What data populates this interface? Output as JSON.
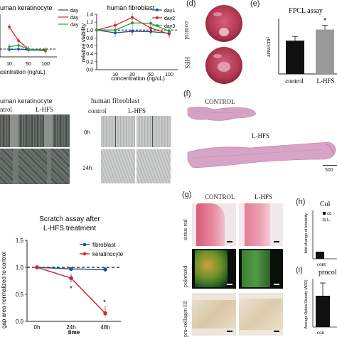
{
  "panel_letters": {
    "d": "(d)",
    "e": "(e)",
    "f": "(f)",
    "g": "(g)",
    "h": "(h)",
    "i": "(i)"
  },
  "top_left_chart": {
    "title": "uman keratinocyte",
    "xlabel": "concentration (ng/uL)"
  },
  "top_mid_chart": {
    "title": "human fibroblast",
    "ylabel": "relative viability",
    "xlabel": "concentration (ng/uL)"
  },
  "legend_days": [
    "day1",
    "day2",
    "day3"
  ],
  "day_colors": {
    "day1": "#1f4e9e",
    "day2": "#d6262b",
    "day3": "#2e9e44"
  },
  "scratch_headers": {
    "keratinocyte_title": "uman keratinocyte",
    "fibroblast_title": "human fibroblast",
    "control_partial": "ntrol",
    "control": "control",
    "lhfs": "L-HFS",
    "row_0h": "0h",
    "row_24h": "24h"
  },
  "panel_d": {
    "control": "control",
    "hfs": "HFS"
  },
  "panel_f": {
    "control": "CONTROL",
    "lhfs": "L-HFS",
    "scale": "500"
  },
  "panel_g": {
    "control": "CONTROL",
    "lhfs": "L-HFS",
    "rows": [
      "sirius red",
      "polorized",
      "pro-collagen III"
    ]
  },
  "panel_h": {
    "title": "Col",
    "ylabel": "fold change of intensity",
    "tick": "cont",
    "legend": [
      "co",
      "L-"
    ]
  },
  "panel_i": {
    "title": "procoll",
    "ylabel": "Average Optical Density (AOD)",
    "tick": "con"
  },
  "chart_data": [
    {
      "type": "line",
      "title": "uman keratinocyte",
      "xlabel": "concentration (ng/uL)",
      "x": [
        10,
        20,
        50,
        100
      ],
      "series": [
        {
          "name": "day1",
          "color": "#1f4e9e",
          "values": [
            0.99,
            1.0,
            0.98,
            0.97
          ]
        },
        {
          "name": "day2",
          "color": "#d6262b",
          "values": [
            1.48,
            1.18,
            1.0,
            0.96
          ]
        },
        {
          "name": "day3",
          "color": "#2e9e44",
          "values": [
            1.05,
            1.08,
            1.0,
            0.98
          ]
        }
      ],
      "xtick_labels": [
        "10",
        "50",
        "100"
      ]
    },
    {
      "type": "line",
      "title": "human fibroblast",
      "xlabel": "concentration (ng/uL)",
      "ylabel": "relative viability",
      "ylim": [
        0.0,
        1.4
      ],
      "yticks": [
        "0.0",
        "0.2",
        "0.4",
        "0.6",
        "0.8",
        "1.0",
        "1.2",
        "1.4"
      ],
      "xtick_labels": [
        "10",
        "20",
        "50",
        "100"
      ],
      "x": [
        0,
        10,
        20,
        50,
        100
      ],
      "series": [
        {
          "name": "day1",
          "color": "#1f4e9e",
          "values": [
            1.0,
            0.93,
            0.97,
            0.96,
            0.92
          ]
        },
        {
          "name": "day2",
          "color": "#d6262b",
          "values": [
            1.0,
            1.12,
            1.32,
            1.05,
            0.9
          ]
        },
        {
          "name": "day3",
          "color": "#2e9e44",
          "values": [
            1.0,
            1.0,
            1.18,
            1.17,
            0.97
          ]
        }
      ],
      "reference_line": 1.0
    },
    {
      "type": "bar",
      "title": "FPCL assay",
      "ylabel": "area/cm²",
      "categories": [
        "control",
        "L-HFS"
      ],
      "values": [
        0.48,
        0.64
      ],
      "colors": [
        "#111111",
        "#9a9a9a"
      ],
      "annotation": "*"
    },
    {
      "type": "line",
      "title": "Scratch assay after\nL-HFS treatment",
      "xlabel": "time",
      "ylabel": "gap area normalized to control",
      "ylim": [
        0.0,
        1.5
      ],
      "yticks": [
        "0.0",
        "0.5",
        "1.0",
        "1.5"
      ],
      "categories": [
        "0h",
        "24h",
        "48h"
      ],
      "series": [
        {
          "name": "fibroblast",
          "color": "#1f4e9e",
          "values": [
            1.0,
            0.97,
            0.96
          ]
        },
        {
          "name": "keratinocyte",
          "color": "#d6262b",
          "values": [
            1.0,
            0.8,
            0.15
          ]
        }
      ],
      "annotations": [
        "*",
        "*"
      ],
      "reference_line": 1.0
    },
    {
      "type": "bar",
      "title": "Col",
      "ylabel": "fold change of intensity",
      "categories": [
        "cont"
      ],
      "legend": [
        "co",
        "L-"
      ]
    },
    {
      "type": "bar",
      "title": "procoll",
      "ylabel": "Average Optical Density (AOD)",
      "categories": [
        "con"
      ]
    }
  ]
}
